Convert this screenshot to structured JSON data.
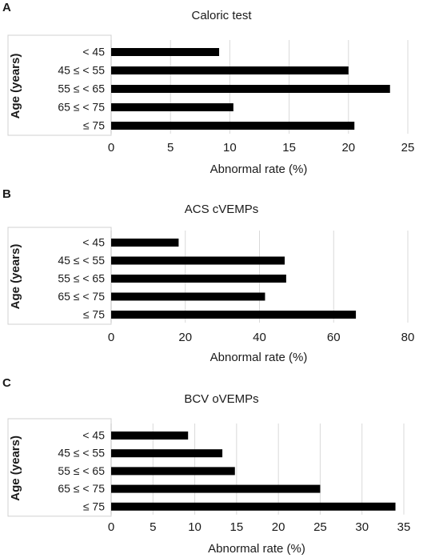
{
  "chart_data": [
    {
      "type": "bar",
      "orientation": "horizontal",
      "panel": "A",
      "title": "Caloric test",
      "xlabel": "Abnormal rate (%)",
      "ylabel": "Age (years)",
      "categories": [
        "< 45",
        "45 ≤ < 55",
        "55 ≤ < 65",
        "65 ≤ < 75",
        "≤ 75"
      ],
      "values": [
        9.1,
        20.0,
        23.5,
        10.3,
        20.5
      ],
      "xlim": [
        0,
        25
      ],
      "xticks": [
        0,
        5,
        10,
        15,
        20,
        25
      ],
      "grid": true,
      "bar_color": "#000000"
    },
    {
      "type": "bar",
      "orientation": "horizontal",
      "panel": "B",
      "title": "ACS cVEMPs",
      "xlabel": "Abnormal rate (%)",
      "ylabel": "Age (years)",
      "categories": [
        "< 45",
        "45 ≤ < 55",
        "55 ≤ < 65",
        "65 ≤ < 75",
        "≤ 75"
      ],
      "values": [
        18.2,
        46.8,
        47.2,
        41.5,
        66.0
      ],
      "xlim": [
        0,
        80
      ],
      "xticks": [
        0,
        20,
        40,
        60,
        80
      ],
      "grid": true,
      "bar_color": "#000000"
    },
    {
      "type": "bar",
      "orientation": "horizontal",
      "panel": "C",
      "title": "BCV oVEMPs",
      "xlabel": "Abnormal rate (%)",
      "ylabel": "Age (years)",
      "categories": [
        "< 45",
        "45 ≤ < 55",
        "55 ≤ < 65",
        "65 ≤ < 75",
        "≤ 75"
      ],
      "values": [
        9.2,
        13.3,
        14.8,
        25.0,
        34.0
      ],
      "xlim": [
        0,
        35
      ],
      "xticks": [
        0,
        5,
        10,
        15,
        20,
        25,
        30,
        35
      ],
      "grid": true,
      "bar_color": "#000000"
    }
  ]
}
